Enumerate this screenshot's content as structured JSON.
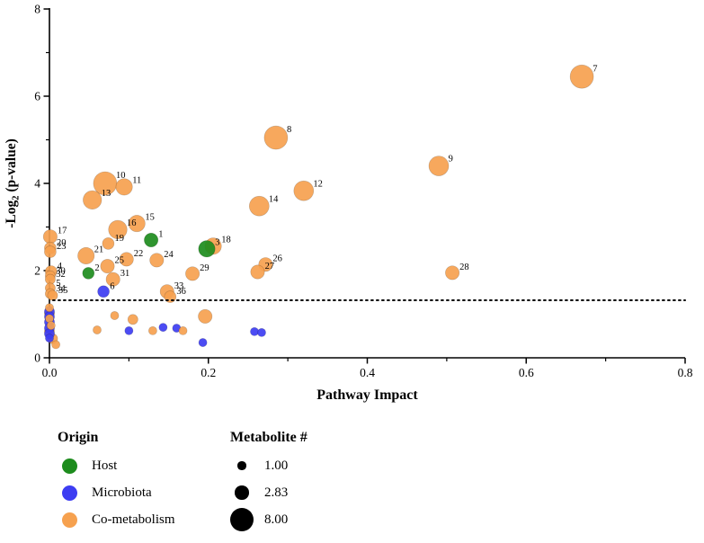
{
  "legend": {
    "origin_title": "Origin",
    "origin_items": [
      {
        "label": "Host",
        "key": "host"
      },
      {
        "label": "Microbiota",
        "key": "microbiota"
      },
      {
        "label": "Co-metabolism",
        "key": "co_metabolism"
      }
    ],
    "size_title": "Metabolite #",
    "size_items": [
      {
        "label": "1.00",
        "n": 1
      },
      {
        "label": "2.83",
        "n": 2.83
      },
      {
        "label": "8.00",
        "n": 8
      }
    ]
  },
  "chart_data": {
    "type": "scatter",
    "title": "",
    "xlabel": "Pathway Impact",
    "ylabel": {
      "pre": "-Log",
      "sub": "2",
      "post": " (p-value)"
    },
    "xlim": [
      0,
      0.8
    ],
    "ylim": [
      0,
      8
    ],
    "x_ticks": [
      {
        "v": 0,
        "label": "0.0"
      },
      {
        "v": 0.2,
        "label": "0.2"
      },
      {
        "v": 0.4,
        "label": "0.4"
      },
      {
        "v": 0.6,
        "label": "0.6"
      },
      {
        "v": 0.8,
        "label": "0.8"
      }
    ],
    "x_minor": [
      0.1,
      0.3,
      0.5,
      0.7
    ],
    "y_ticks": [
      {
        "v": 0,
        "label": "0"
      },
      {
        "v": 2,
        "label": "2"
      },
      {
        "v": 4,
        "label": "4"
      },
      {
        "v": 6,
        "label": "6"
      },
      {
        "v": 8,
        "label": "8"
      }
    ],
    "y_minor": [
      1,
      3,
      5,
      7
    ],
    "threshold_y": 1.32,
    "grid": false,
    "colors": {
      "host": "#1d8c1d",
      "microbiota": "#3d3df2",
      "co_metabolism": "#f6a14f"
    },
    "size_scale": {
      "k": 4.6
    },
    "points": [
      {
        "label": "7",
        "x": 0.67,
        "y": 6.45,
        "origin": "co_metabolism",
        "n": 8
      },
      {
        "label": "8",
        "x": 0.285,
        "y": 5.05,
        "origin": "co_metabolism",
        "n": 8
      },
      {
        "label": "9",
        "x": 0.49,
        "y": 4.4,
        "origin": "co_metabolism",
        "n": 5.7
      },
      {
        "label": "10",
        "x": 0.07,
        "y": 4.0,
        "origin": "co_metabolism",
        "n": 8
      },
      {
        "label": "11",
        "x": 0.094,
        "y": 3.92,
        "origin": "co_metabolism",
        "n": 4
      },
      {
        "label": "12",
        "x": 0.32,
        "y": 3.83,
        "origin": "co_metabolism",
        "n": 5.7
      },
      {
        "label": "13",
        "x": 0.054,
        "y": 3.62,
        "origin": "co_metabolism",
        "n": 5
      },
      {
        "label": "14",
        "x": 0.264,
        "y": 3.48,
        "origin": "co_metabolism",
        "n": 5.7
      },
      {
        "label": "15",
        "x": 0.11,
        "y": 3.08,
        "origin": "co_metabolism",
        "n": 4
      },
      {
        "label": "16",
        "x": 0.086,
        "y": 2.94,
        "origin": "co_metabolism",
        "n": 5
      },
      {
        "label": "17",
        "x": 0.001,
        "y": 2.78,
        "origin": "co_metabolism",
        "n": 2.83
      },
      {
        "label": "1",
        "x": 0.128,
        "y": 2.7,
        "origin": "host",
        "n": 2.83
      },
      {
        "label": "19",
        "x": 0.074,
        "y": 2.62,
        "origin": "co_metabolism",
        "n": 2
      },
      {
        "label": "18",
        "x": 0.206,
        "y": 2.56,
        "origin": "co_metabolism",
        "n": 4
      },
      {
        "label": "3",
        "x": 0.198,
        "y": 2.5,
        "origin": "host",
        "n": 4
      },
      {
        "label": "20",
        "x": 0.001,
        "y": 2.52,
        "origin": "co_metabolism",
        "n": 2
      },
      {
        "label": "23",
        "x": 0.001,
        "y": 2.43,
        "origin": "co_metabolism",
        "n": 2
      },
      {
        "label": "21",
        "x": 0.046,
        "y": 2.34,
        "origin": "co_metabolism",
        "n": 4
      },
      {
        "label": "22",
        "x": 0.097,
        "y": 2.26,
        "origin": "co_metabolism",
        "n": 2.83
      },
      {
        "label": "24",
        "x": 0.135,
        "y": 2.24,
        "origin": "co_metabolism",
        "n": 2.83
      },
      {
        "label": "25",
        "x": 0.073,
        "y": 2.1,
        "origin": "co_metabolism",
        "n": 2.83
      },
      {
        "label": "26",
        "x": 0.272,
        "y": 2.14,
        "origin": "co_metabolism",
        "n": 2.83
      },
      {
        "label": "27",
        "x": 0.262,
        "y": 1.97,
        "origin": "co_metabolism",
        "n": 2.83
      },
      {
        "label": "29",
        "x": 0.18,
        "y": 1.93,
        "origin": "co_metabolism",
        "n": 2.83
      },
      {
        "label": "28",
        "x": 0.507,
        "y": 1.95,
        "origin": "co_metabolism",
        "n": 2.83
      },
      {
        "label": "2",
        "x": 0.049,
        "y": 1.94,
        "origin": "host",
        "n": 2
      },
      {
        "label": "4",
        "x": 0.002,
        "y": 1.98,
        "origin": "co_metabolism",
        "n": 2
      },
      {
        "label": "30",
        "x": 0.001,
        "y": 1.88,
        "origin": "co_metabolism",
        "n": 1.5
      },
      {
        "label": "32",
        "x": 0.001,
        "y": 1.8,
        "origin": "co_metabolism",
        "n": 1.5
      },
      {
        "label": "31",
        "x": 0.08,
        "y": 1.8,
        "origin": "co_metabolism",
        "n": 2.83
      },
      {
        "label": "5",
        "x": 0.001,
        "y": 1.6,
        "origin": "co_metabolism",
        "n": 1.5
      },
      {
        "label": "6",
        "x": 0.068,
        "y": 1.52,
        "origin": "microbiota",
        "n": 2
      },
      {
        "label": "33",
        "x": 0.148,
        "y": 1.52,
        "origin": "co_metabolism",
        "n": 2.83
      },
      {
        "label": "36",
        "x": 0.152,
        "y": 1.4,
        "origin": "co_metabolism",
        "n": 2
      },
      {
        "label": "34",
        "x": 0.001,
        "y": 1.47,
        "origin": "co_metabolism",
        "n": 1.5
      },
      {
        "label": "35",
        "x": 0.004,
        "y": 1.43,
        "origin": "co_metabolism",
        "n": 1.5
      },
      {
        "label": "",
        "x": 0.0,
        "y": 1.15,
        "origin": "co_metabolism",
        "n": 1
      },
      {
        "label": "",
        "x": 0.0,
        "y": 1.02,
        "origin": "co_metabolism",
        "n": 1.5
      },
      {
        "label": "",
        "x": 0.0,
        "y": 0.9,
        "origin": "co_metabolism",
        "n": 1
      },
      {
        "label": "",
        "x": 0.002,
        "y": 0.74,
        "origin": "co_metabolism",
        "n": 1
      },
      {
        "label": "",
        "x": 0.0,
        "y": 0.6,
        "origin": "co_metabolism",
        "n": 1.5
      },
      {
        "label": "",
        "x": 0.004,
        "y": 0.44,
        "origin": "co_metabolism",
        "n": 1.5
      },
      {
        "label": "",
        "x": 0.008,
        "y": 0.3,
        "origin": "co_metabolism",
        "n": 1
      },
      {
        "label": "",
        "x": 0.0,
        "y": 1.06,
        "origin": "microbiota",
        "n": 1.5
      },
      {
        "label": "",
        "x": 0.0,
        "y": 0.94,
        "origin": "microbiota",
        "n": 1.5
      },
      {
        "label": "",
        "x": 0.0,
        "y": 0.82,
        "origin": "microbiota",
        "n": 1.5
      },
      {
        "label": "",
        "x": 0.0,
        "y": 0.68,
        "origin": "microbiota",
        "n": 1.5
      },
      {
        "label": "",
        "x": 0.0,
        "y": 0.55,
        "origin": "microbiota",
        "n": 1.5
      },
      {
        "label": "",
        "x": 0.0,
        "y": 0.45,
        "origin": "microbiota",
        "n": 1
      },
      {
        "label": "",
        "x": 0.082,
        "y": 0.97,
        "origin": "co_metabolism",
        "n": 1
      },
      {
        "label": "",
        "x": 0.105,
        "y": 0.88,
        "origin": "co_metabolism",
        "n": 1.5
      },
      {
        "label": "",
        "x": 0.06,
        "y": 0.64,
        "origin": "co_metabolism",
        "n": 1
      },
      {
        "label": "",
        "x": 0.1,
        "y": 0.62,
        "origin": "microbiota",
        "n": 1
      },
      {
        "label": "",
        "x": 0.13,
        "y": 0.62,
        "origin": "co_metabolism",
        "n": 1
      },
      {
        "label": "",
        "x": 0.143,
        "y": 0.7,
        "origin": "microbiota",
        "n": 1
      },
      {
        "label": "",
        "x": 0.16,
        "y": 0.68,
        "origin": "microbiota",
        "n": 1
      },
      {
        "label": "",
        "x": 0.168,
        "y": 0.62,
        "origin": "co_metabolism",
        "n": 1
      },
      {
        "label": "",
        "x": 0.196,
        "y": 0.95,
        "origin": "co_metabolism",
        "n": 2.83
      },
      {
        "label": "",
        "x": 0.193,
        "y": 0.35,
        "origin": "microbiota",
        "n": 1
      },
      {
        "label": "",
        "x": 0.258,
        "y": 0.6,
        "origin": "microbiota",
        "n": 1
      },
      {
        "label": "",
        "x": 0.267,
        "y": 0.58,
        "origin": "microbiota",
        "n": 1
      }
    ]
  }
}
